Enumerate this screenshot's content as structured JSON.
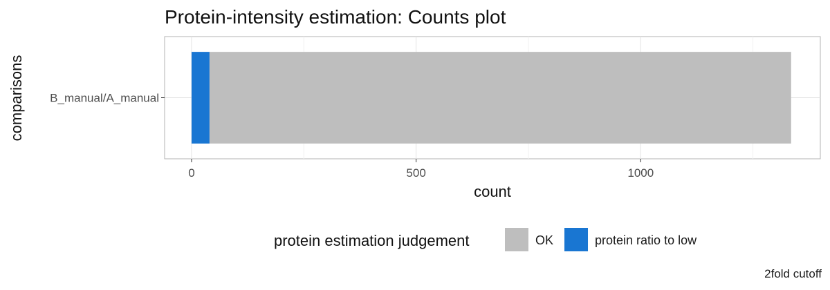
{
  "chart_data": {
    "type": "bar",
    "orientation": "horizontal",
    "stacked": true,
    "title": "Protein-intensity estimation: Counts plot",
    "xlabel": "count",
    "ylabel": "comparisons",
    "categories": [
      "B_manual/A_manual"
    ],
    "xlim": [
      -60,
      1400
    ],
    "x_ticks": [
      0,
      500,
      1000
    ],
    "x_tick_labels": [
      "0",
      "500",
      "1000"
    ],
    "grid": true,
    "series": [
      {
        "name": "protein ratio to low",
        "values": [
          40
        ],
        "color": "#1976D2"
      },
      {
        "name": "OK",
        "values": [
          1295
        ],
        "color": "#BEBEBE"
      }
    ],
    "legend": {
      "title": "protein estimation judgement",
      "placement": "bottom",
      "items": [
        {
          "label": "OK",
          "color": "#BEBEBE"
        },
        {
          "label": "protein ratio to low",
          "color": "#1976D2"
        }
      ]
    },
    "caption": "2fold cutoff"
  }
}
